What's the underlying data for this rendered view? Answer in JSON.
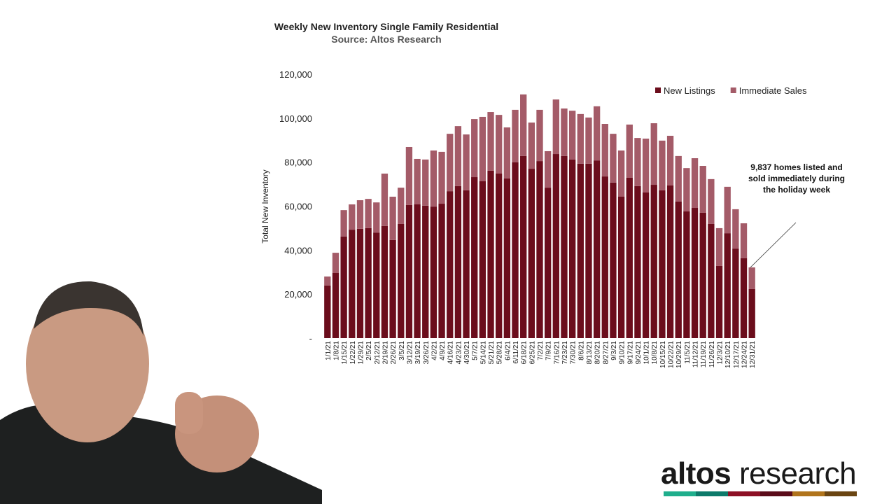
{
  "chart_data": {
    "type": "bar",
    "stacked": true,
    "title": "Weekly New Inventory Single Family Residential",
    "subtitle": "Source: Altos Research",
    "ylabel": "Total New Inventory",
    "annotation": "9,837 homes listed and sold immediately during the holiday week",
    "legend": "top-right",
    "categories": [
      "1/1/21",
      "1/8/21",
      "1/15/21",
      "1/22/21",
      "1/29/21",
      "2/5/21",
      "2/12/21",
      "2/19/21",
      "2/26/21",
      "3/5/21",
      "3/12/21",
      "3/19/21",
      "3/26/21",
      "4/2/21",
      "4/9/21",
      "4/16/21",
      "4/23/21",
      "4/30/21",
      "5/7/21",
      "5/14/21",
      "5/21/21",
      "5/28/21",
      "6/4/21",
      "6/11/21",
      "6/18/21",
      "6/25/21",
      "7/2/21",
      "7/9/21",
      "7/16/21",
      "7/23/21",
      "7/30/21",
      "8/6/21",
      "8/13/21",
      "8/20/21",
      "8/27/21",
      "9/3/21",
      "9/10/21",
      "9/17/21",
      "9/24/21",
      "10/1/21",
      "10/8/21",
      "10/15/21",
      "10/22/21",
      "10/29/21",
      "11/5/21",
      "11/12/21",
      "11/19/21",
      "11/26/21",
      "12/3/21",
      "12/10/21",
      "12/17/21",
      "12/24/21",
      "12/31/21"
    ],
    "series": [
      {
        "name": "New Listings",
        "color": "#6b0d1c",
        "values": [
          23900,
          29600,
          46200,
          49300,
          49700,
          50000,
          48000,
          51000,
          44600,
          51900,
          60500,
          60800,
          60200,
          59800,
          61100,
          66800,
          69100,
          67200,
          73200,
          71300,
          76100,
          74800,
          72600,
          79900,
          82800,
          77000,
          80500,
          68400,
          83700,
          82800,
          81200,
          79300,
          79300,
          80800,
          73500,
          70700,
          64300,
          72900,
          69100,
          66200,
          69700,
          67200,
          69400,
          62100,
          57600,
          59200,
          57000,
          51900,
          32800,
          47700,
          40700,
          36300,
          22300
        ]
      },
      {
        "name": "Immediate Sales",
        "color": "#a45b68",
        "values": [
          4100,
          9200,
          12000,
          11500,
          13000,
          13300,
          13700,
          23800,
          19700,
          16500,
          26400,
          20700,
          21000,
          25500,
          23600,
          26100,
          27300,
          25400,
          26400,
          29300,
          26700,
          26700,
          23200,
          23900,
          28000,
          21000,
          23300,
          16600,
          24800,
          21600,
          22200,
          22600,
          21000,
          24600,
          23900,
          22200,
          21000,
          24200,
          21900,
          24500,
          28000,
          22600,
          22600,
          20700,
          19700,
          22600,
          21300,
          20400,
          17200,
          21100,
          17900,
          15900,
          9837
        ]
      }
    ],
    "ylim": [
      0,
      120000
    ],
    "yticks": [
      {
        "value": 0,
        "label": "-"
      },
      {
        "value": 20000,
        "label": "20,000"
      },
      {
        "value": 40000,
        "label": "40,000"
      },
      {
        "value": 60000,
        "label": "60,000"
      },
      {
        "value": 80000,
        "label": "80,000"
      },
      {
        "value": 100000,
        "label": "100,000"
      },
      {
        "value": 120000,
        "label": "120,000"
      }
    ],
    "grid": false
  },
  "logo": {
    "brand": "altos",
    "word": "research"
  }
}
